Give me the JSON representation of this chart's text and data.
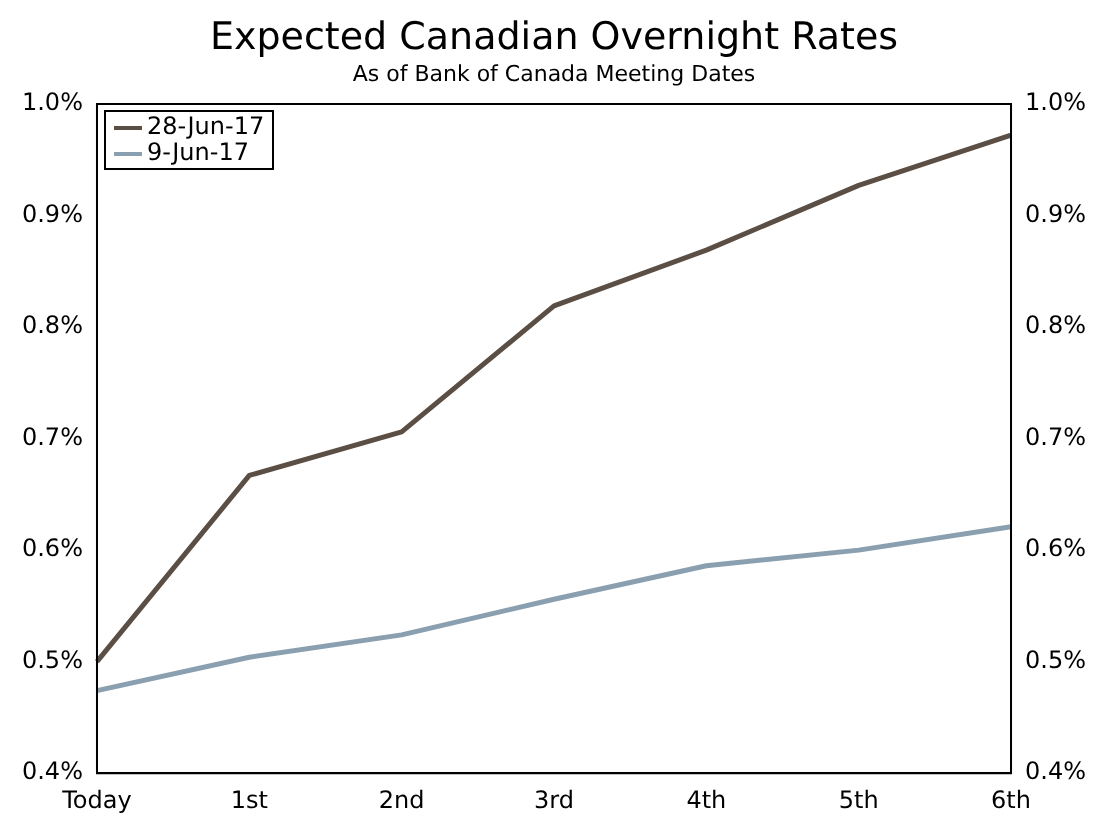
{
  "chart_data": {
    "type": "line",
    "title": "Expected Canadian Overnight Rates",
    "subtitle": "As of Bank of Canada Meeting Dates",
    "categories": [
      "Today",
      "1st",
      "2nd",
      "3rd",
      "4th",
      "5th",
      "6th"
    ],
    "series": [
      {
        "name": "28-Jun-17",
        "color": "#5b4f45",
        "values": [
          0.5,
          0.667,
          0.706,
          0.819,
          0.869,
          0.927,
          0.972
        ]
      },
      {
        "name": "9-Jun-17",
        "color": "#8aa0b0",
        "values": [
          0.474,
          0.504,
          0.524,
          0.556,
          0.586,
          0.6,
          0.621
        ]
      }
    ],
    "ylim": [
      0.4,
      1.0
    ],
    "yticks": [
      {
        "value": 0.4,
        "label": "0.4%"
      },
      {
        "value": 0.5,
        "label": "0.5%"
      },
      {
        "value": 0.6,
        "label": "0.6%"
      },
      {
        "value": 0.7,
        "label": "0.7%"
      },
      {
        "value": 0.8,
        "label": "0.8%"
      },
      {
        "value": 0.9,
        "label": "0.9%"
      },
      {
        "value": 1.0,
        "label": "1.0%"
      }
    ],
    "y2lim": [
      0.4,
      1.0
    ],
    "y2ticks": [
      {
        "value": 0.4,
        "label": "0.4%"
      },
      {
        "value": 0.5,
        "label": "0.5%"
      },
      {
        "value": 0.6,
        "label": "0.6%"
      },
      {
        "value": 0.7,
        "label": "0.7%"
      },
      {
        "value": 0.8,
        "label": "0.8%"
      },
      {
        "value": 0.9,
        "label": "0.9%"
      },
      {
        "value": 1.0,
        "label": "1.0%"
      }
    ],
    "legend": "top left",
    "grid": false,
    "marker": "none",
    "line_style": "solid"
  }
}
